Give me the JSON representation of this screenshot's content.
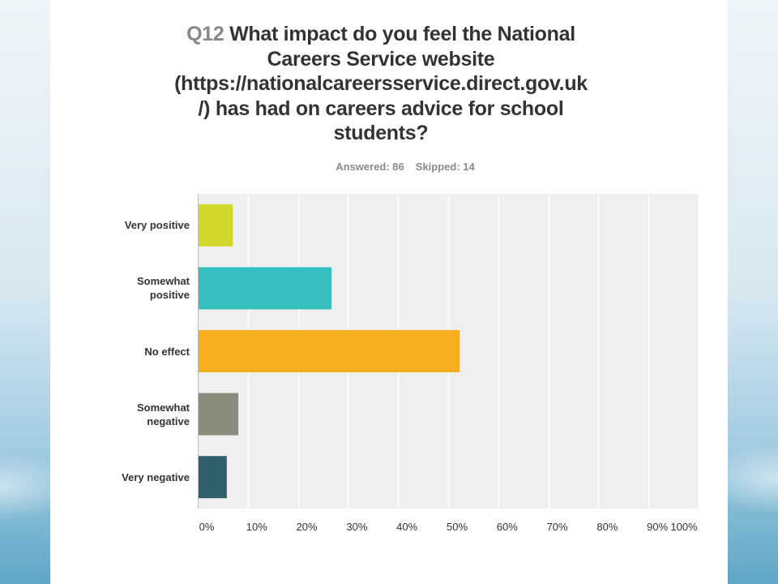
{
  "chart_data": {
    "type": "bar",
    "orientation": "horizontal",
    "question_number": "Q12",
    "title": "What impact do you feel the National Careers Service website (https://nationalcareersservice.direct.gov.uk /) has had on careers advice for school students?",
    "title_lines": [
      "What impact do you feel the National",
      "Careers Service website",
      "(https://nationalcareersservice.direct.gov.uk",
      "/) has had on careers advice for school",
      "students?"
    ],
    "answered": "Answered: 86",
    "skipped": "Skipped: 14",
    "categories": [
      "Very positive",
      "Somewhat positive",
      "No effect",
      "Somewhat negative",
      "Very negative"
    ],
    "category_lines": [
      [
        "Very positive"
      ],
      [
        "Somewhat",
        "positive"
      ],
      [
        "No effect"
      ],
      [
        "Somewhat",
        "negative"
      ],
      [
        "Very negative"
      ]
    ],
    "values": [
      7,
      26.7,
      52.3,
      8.1,
      5.8
    ],
    "colors": [
      "#d0d82b",
      "#35bfc1",
      "#f5ae20",
      "#8b8b7b",
      "#2e5f6b"
    ],
    "x_ticks": [
      "0%",
      "10%",
      "20%",
      "30%",
      "40%",
      "50%",
      "60%",
      "70%",
      "80%",
      "90%",
      "100%"
    ],
    "xlim": [
      0,
      100
    ],
    "grid": true,
    "plot_background": "#efefef"
  }
}
